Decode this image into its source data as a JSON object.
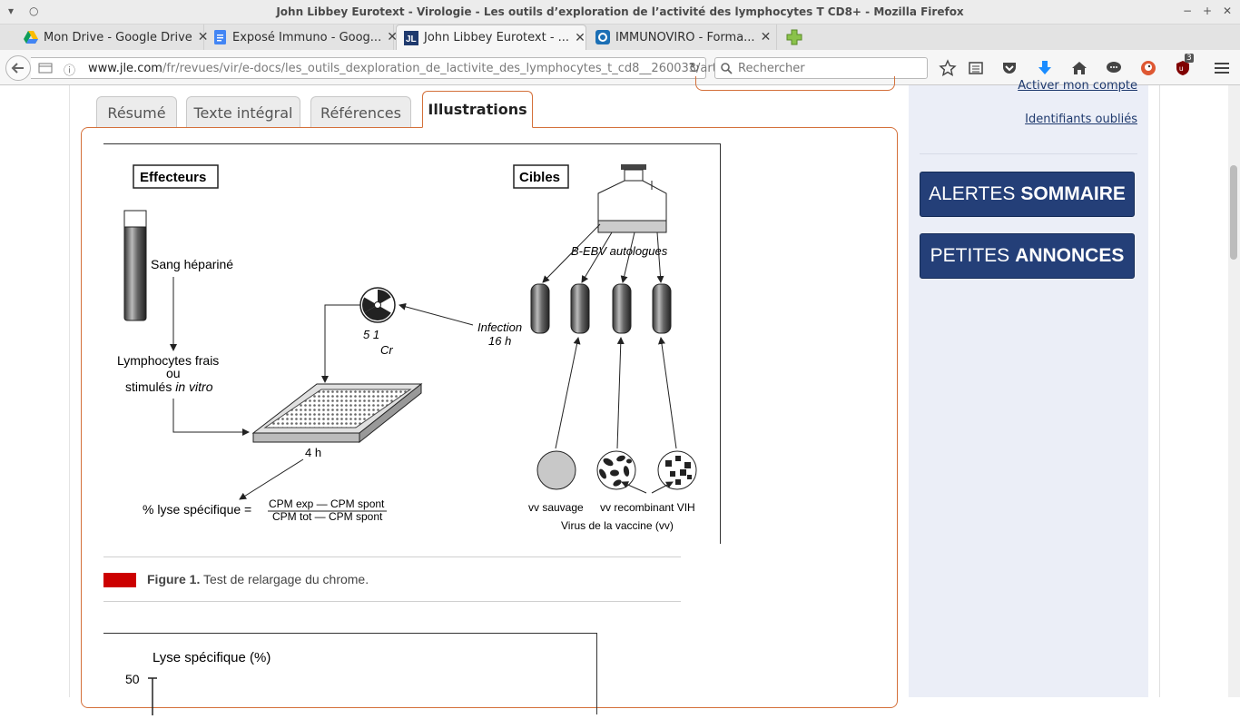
{
  "window": {
    "title": "John Libbey Eurotext - Virologie - Les outils d’exploration de l’activité des lymphocytes T CD8+ - Mozilla Firefox"
  },
  "tabs": [
    {
      "label": "Mon Drive - Google Drive",
      "icon": "google-drive-icon"
    },
    {
      "label": "Exposé Immuno - Goog...",
      "icon": "google-docs-icon"
    },
    {
      "label": "John Libbey Eurotext - ...",
      "icon": "jle-icon"
    },
    {
      "label": "IMMUNOVIRO - Forma...",
      "icon": "page-icon"
    }
  ],
  "navbar": {
    "url_domain": "www.jle.com",
    "url_path": "/fr/revues/vir/e-docs/les_outils_dexploration_de_lactivite_des_lymphocytes_t_cd8__260033/art",
    "search_placeholder": "Rechercher",
    "ublock_badge": "3"
  },
  "content_tabs": [
    {
      "label": "Résumé"
    },
    {
      "label": "Texte intégral"
    },
    {
      "label": "Références"
    },
    {
      "label": "Illustrations"
    }
  ],
  "figure1": {
    "effecteurs": "Effecteurs",
    "cibles": "Cibles",
    "sang": "Sang hépariné",
    "lymph1": "Lymphocytes frais",
    "lymph2": "ou",
    "lymph3": "stimulés",
    "lymph3b": "in vitro",
    "cr1": "5 1",
    "cr2": "Cr",
    "infection1": "Infection",
    "infection2": "16 h",
    "ebv": "B-EBV autologues",
    "time": "4 h",
    "lyse": "% lyse spécifique =",
    "num": "CPM exp — CPM spont",
    "den": "CPM tot — CPM spont",
    "vvsauvage": "vv sauvage",
    "vvrecomb": "vv recombinant VIH",
    "virus": "Virus de la vaccine (vv)"
  },
  "caption": {
    "bold": "Figure 1.",
    "text": "Test de relargage du chrome."
  },
  "figure2": {
    "ylabel": "Lyse spécifique (%)",
    "tick": "50"
  },
  "sidebar": {
    "link_account": "Activer mon compte",
    "link_ids": "Identifiants oubliés",
    "btn1_light": "ALERTES",
    "btn1_bold": "SOMMAIRE",
    "btn2_light": "PETITES",
    "btn2_bold": "ANNONCES"
  },
  "colors": {
    "accent": "#d4703a",
    "brand_button": "#243f78",
    "caption_mark": "#cc0000"
  }
}
